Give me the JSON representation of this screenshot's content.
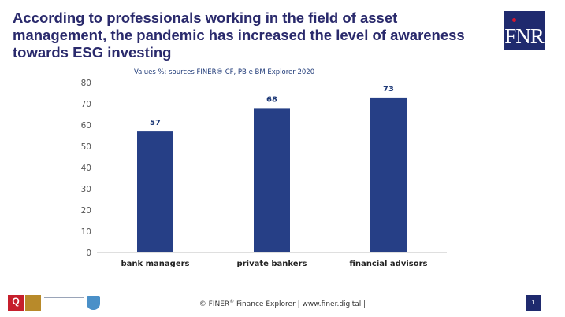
{
  "slide": {
    "title": "According to professionals working in the field of asset management, the pandemic has increased the level of awareness towards ESG investing",
    "logo_text": "FNR",
    "colors": {
      "title": "#2a2a6c",
      "bar": "#263f86",
      "logo_bg": "#1f2a6e",
      "logo_dot": "#d3172e"
    }
  },
  "chart_data": {
    "type": "bar",
    "subtitle": "Values %: sources FINER® CF, PB e  BM Explorer 2020",
    "categories": [
      "bank managers",
      "private bankers",
      "financial advisors"
    ],
    "values": [
      57,
      68,
      73
    ],
    "data_labels": [
      "57",
      "68",
      "73"
    ],
    "ylim": [
      0,
      80
    ],
    "yticks": [
      0,
      10,
      20,
      30,
      40,
      50,
      60,
      70,
      80
    ],
    "grid": false,
    "legend": "none"
  },
  "footer": {
    "copyright": "© FINER",
    "copyright_sup": "®",
    "rest": " Finance Explorer | www.finer.digital |",
    "page_number": "1",
    "logos": [
      "q-certification-logo",
      "gold-badge-logo",
      "confindustria-logo",
      "certification-shield-icon"
    ]
  }
}
